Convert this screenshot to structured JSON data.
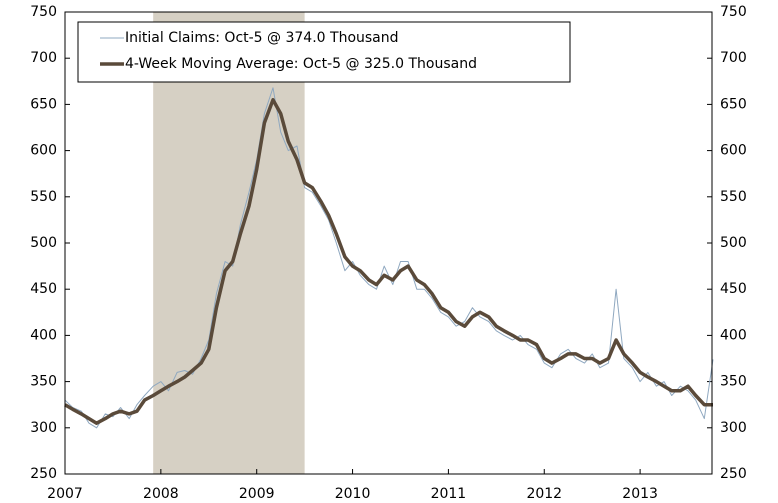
{
  "chart_data": {
    "type": "line",
    "x": [
      2007.0,
      2007.08,
      2007.17,
      2007.25,
      2007.33,
      2007.42,
      2007.5,
      2007.58,
      2007.67,
      2007.75,
      2007.83,
      2007.92,
      2008.0,
      2008.08,
      2008.17,
      2008.25,
      2008.33,
      2008.42,
      2008.5,
      2008.58,
      2008.67,
      2008.75,
      2008.83,
      2008.92,
      2009.0,
      2009.08,
      2009.17,
      2009.25,
      2009.33,
      2009.42,
      2009.5,
      2009.58,
      2009.67,
      2009.75,
      2009.83,
      2009.92,
      2010.0,
      2010.08,
      2010.17,
      2010.25,
      2010.33,
      2010.42,
      2010.5,
      2010.58,
      2010.67,
      2010.75,
      2010.83,
      2010.92,
      2011.0,
      2011.08,
      2011.17,
      2011.25,
      2011.33,
      2011.42,
      2011.5,
      2011.58,
      2011.67,
      2011.75,
      2011.83,
      2011.92,
      2012.0,
      2012.08,
      2012.17,
      2012.25,
      2012.33,
      2012.42,
      2012.5,
      2012.58,
      2012.67,
      2012.75,
      2012.83,
      2012.92,
      2013.0,
      2013.08,
      2013.17,
      2013.25,
      2013.33,
      2013.42,
      2013.5,
      2013.58,
      2013.67,
      2013.76
    ],
    "series": [
      {
        "name": "Initial Claims: Oct-5 @ 374.0 Thousand",
        "color": "#8fa8c0",
        "values": [
          330,
          322,
          318,
          305,
          300,
          315,
          312,
          322,
          310,
          325,
          335,
          345,
          350,
          340,
          360,
          362,
          358,
          375,
          395,
          445,
          480,
          475,
          520,
          555,
          590,
          640,
          668,
          620,
          600,
          605,
          560,
          555,
          540,
          525,
          500,
          470,
          480,
          465,
          455,
          450,
          475,
          455,
          480,
          480,
          450,
          450,
          440,
          425,
          420,
          410,
          415,
          430,
          420,
          415,
          405,
          400,
          395,
          400,
          390,
          385,
          370,
          365,
          380,
          385,
          375,
          370,
          380,
          365,
          370,
          450,
          375,
          365,
          350,
          360,
          345,
          350,
          335,
          345,
          340,
          330,
          310,
          374
        ]
      },
      {
        "name": "4-Week Moving Average: Oct-5 @ 325.0 Thousand",
        "color": "#5a4a3a",
        "values": [
          325,
          320,
          315,
          310,
          305,
          310,
          315,
          318,
          315,
          318,
          330,
          335,
          340,
          345,
          350,
          355,
          362,
          370,
          385,
          430,
          470,
          480,
          510,
          540,
          580,
          630,
          655,
          640,
          610,
          590,
          565,
          560,
          545,
          530,
          510,
          485,
          475,
          470,
          460,
          455,
          465,
          460,
          470,
          475,
          460,
          455,
          445,
          430,
          425,
          415,
          410,
          420,
          425,
          420,
          410,
          405,
          400,
          395,
          395,
          390,
          375,
          370,
          375,
          380,
          380,
          375,
          375,
          370,
          375,
          395,
          380,
          370,
          360,
          355,
          350,
          345,
          340,
          340,
          345,
          335,
          325,
          325
        ]
      }
    ],
    "shade": [
      2007.92,
      2009.5
    ],
    "shade_color": "#d6d0c4",
    "xlim": [
      2007,
      2013.75
    ],
    "xticks": [
      2007,
      2008,
      2009,
      2010,
      2011,
      2012,
      2013
    ],
    "ylim": [
      250,
      750
    ],
    "yticks": [
      250,
      300,
      350,
      400,
      450,
      500,
      550,
      600,
      650,
      700,
      750
    ],
    "y2lim": [
      250,
      750
    ],
    "y2ticks": [
      250,
      300,
      350,
      400,
      450,
      500,
      550,
      600,
      650,
      700,
      750
    ],
    "legend": "upper left"
  }
}
